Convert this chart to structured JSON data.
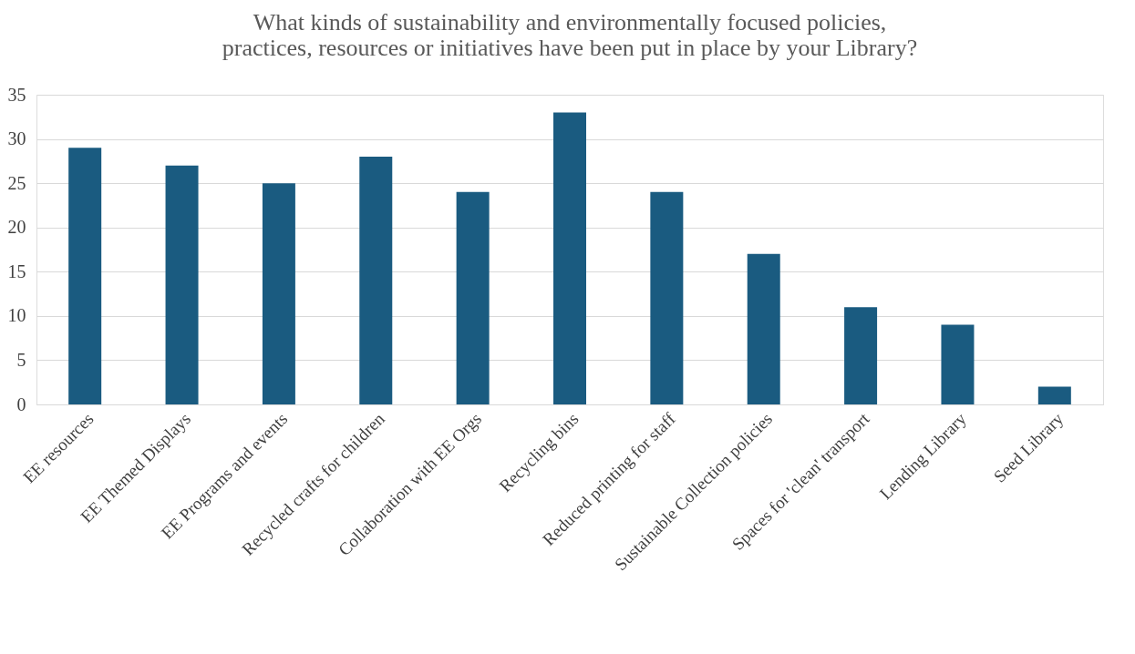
{
  "chart_data": {
    "type": "bar",
    "title": "What kinds of sustainability and environmentally focused policies,\npractices, resources or initiatives have been put in place by your Library?",
    "categories": [
      "EE resources",
      "EE Themed Displays",
      "EE Programs and events",
      "Recycled crafts for children",
      "Collaboration with EE Orgs",
      "Recycling bins",
      "Reduced printing for staff",
      "Sustainable Collection policies",
      "Spaces for 'clean' transport",
      "Lending Library",
      "Seed Library"
    ],
    "values": [
      29,
      27,
      25,
      28,
      24,
      33,
      24,
      17,
      11,
      9,
      2
    ],
    "color": "#1a5b80",
    "ylim": [
      0,
      35
    ],
    "yticks": [
      0,
      5,
      10,
      15,
      20,
      25,
      30,
      35
    ],
    "grid": "y"
  }
}
